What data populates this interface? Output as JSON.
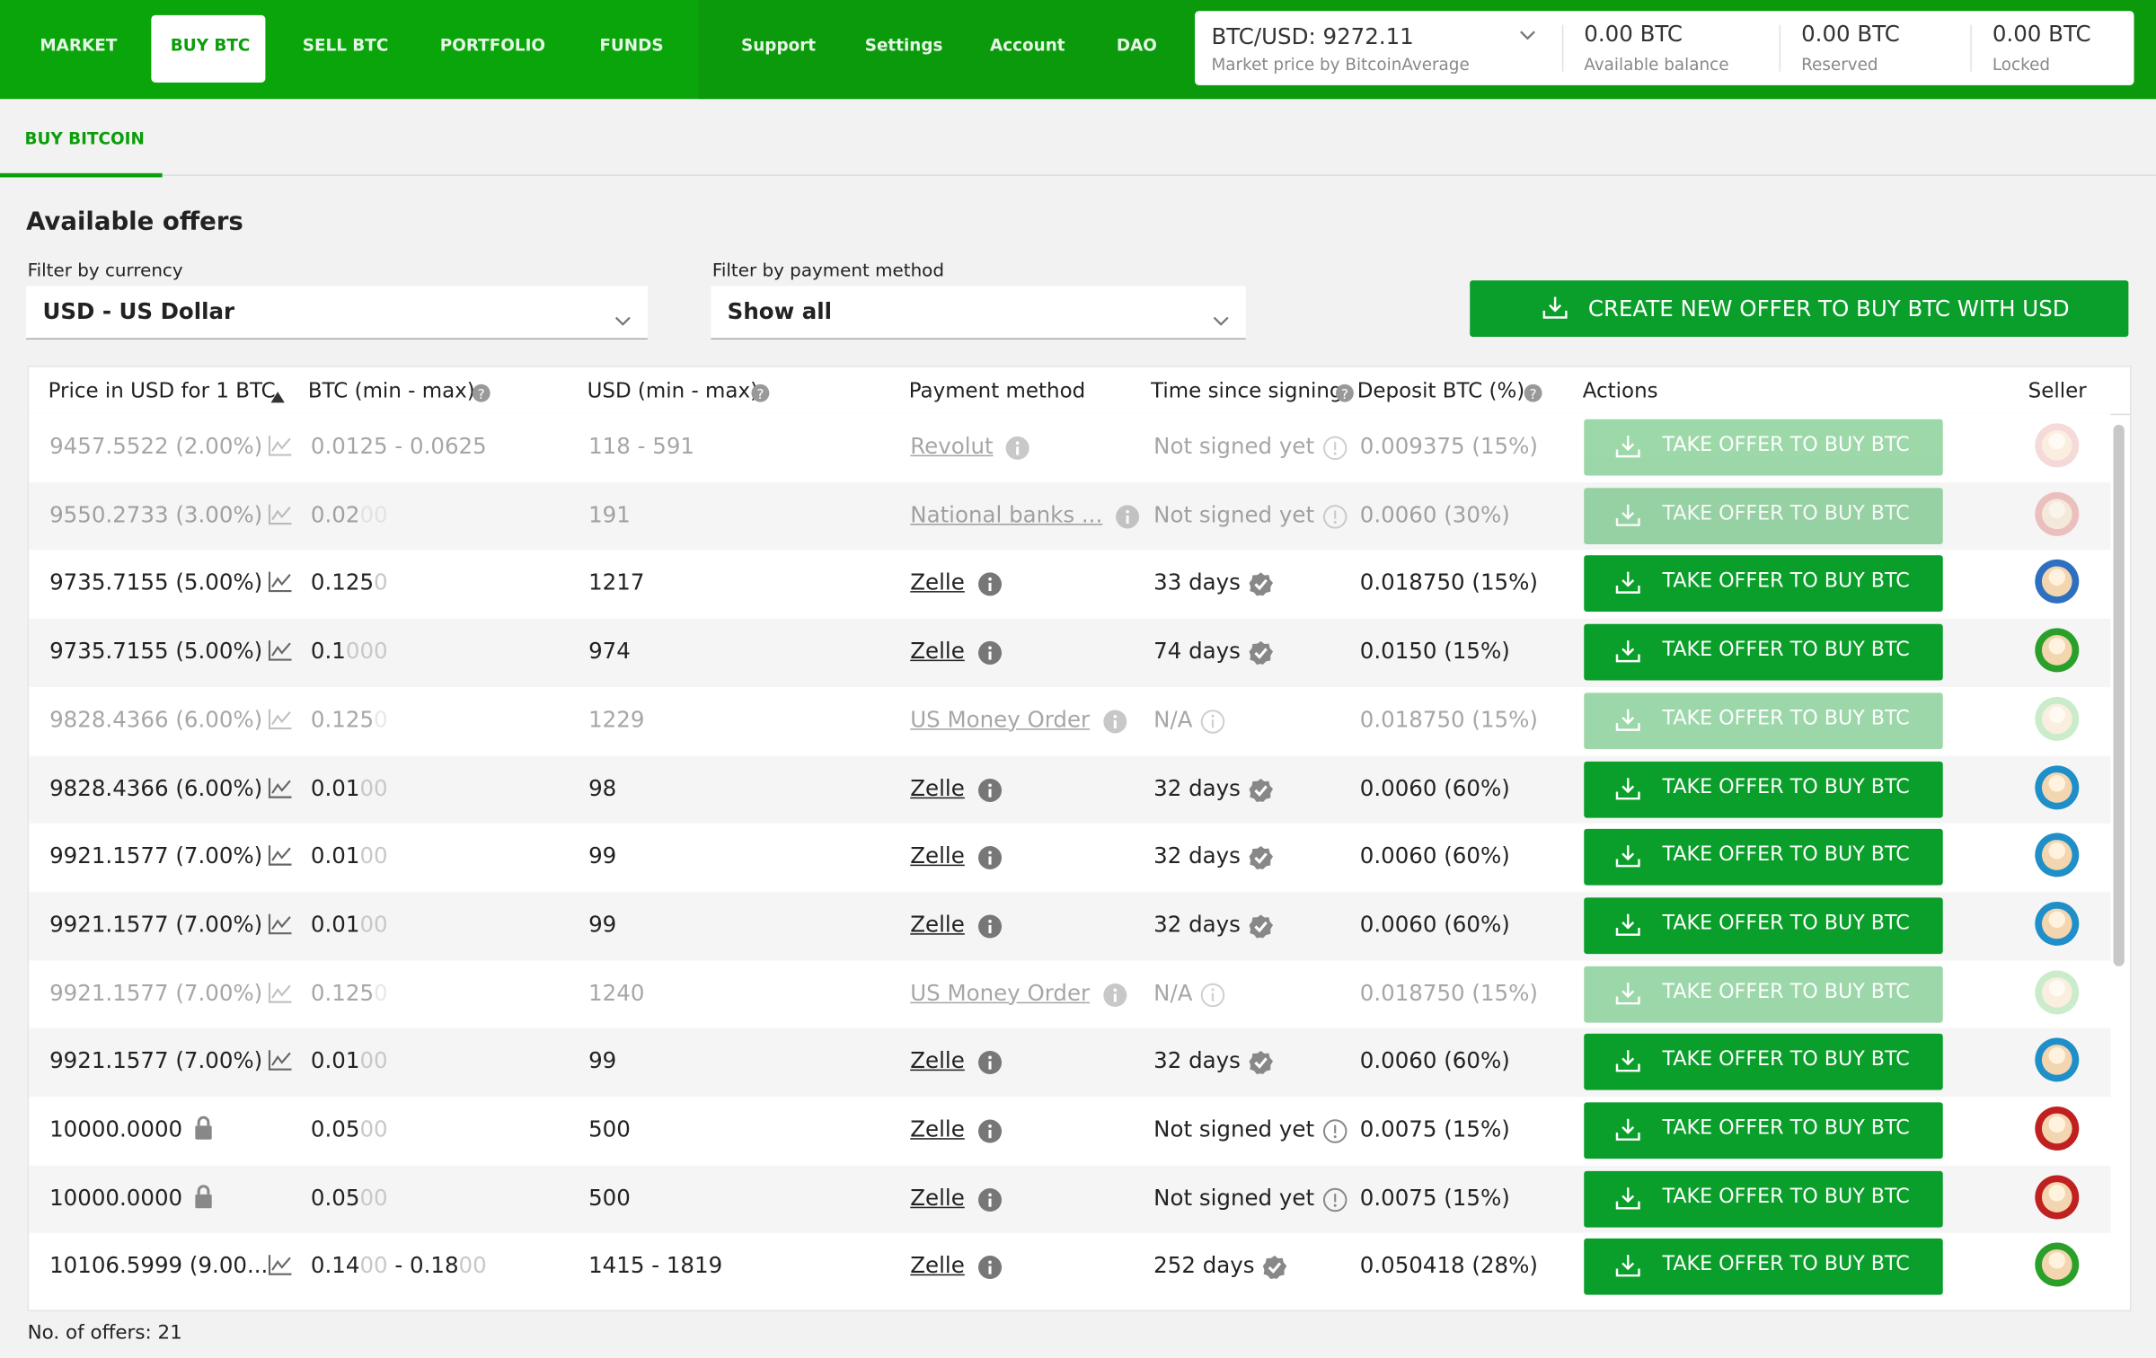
{
  "nav": {
    "items": [
      "MARKET",
      "BUY BTC",
      "SELL BTC",
      "PORTFOLIO",
      "FUNDS"
    ],
    "secondary": [
      "Support",
      "Settings",
      "Account",
      "DAO"
    ],
    "active": 1
  },
  "price": {
    "pair": "BTC/USD: 9272.11",
    "source": "Market price by BitcoinAverage"
  },
  "balances": [
    {
      "value": "0.00 BTC",
      "label": "Available balance"
    },
    {
      "value": "0.00 BTC",
      "label": "Reserved"
    },
    {
      "value": "0.00 BTC",
      "label": "Locked"
    }
  ],
  "tab": "BUY BITCOIN",
  "heading": "Available offers",
  "filters": [
    {
      "label": "Filter by currency",
      "value": "USD  -  US Dollar"
    },
    {
      "label": "Filter by payment method",
      "value": "Show all"
    }
  ],
  "create_button": "CREATE NEW OFFER TO BUY BTC WITH USD",
  "table": {
    "headers": [
      "Price in USD for 1 BTC",
      "BTC (min - max)",
      "USD (min - max)",
      "Payment method",
      "Time since signing",
      "Deposit BTC (%)",
      "Actions",
      "Seller"
    ],
    "action_label": "TAKE OFFER TO BUY BTC",
    "rows": [
      {
        "price": "9457.5522 (2.00%)",
        "icon": "chart",
        "btc": [
          "0.0125 - 0.0625"
        ],
        "usd": "118 - 591",
        "payment": "Revolut",
        "time": "Not signed yet",
        "status": "warn",
        "deposit": "0.009375 (15%)",
        "disabled": true,
        "avatar": "#e8a0a0"
      },
      {
        "price": "9550.2733 (3.00%)",
        "icon": "chart",
        "btc": [
          "0.02",
          "00"
        ],
        "usd": "191",
        "payment": "National banks ...",
        "time": "Not signed yet",
        "status": "warn",
        "deposit": "0.0060 (30%)",
        "disabled": true,
        "avatar": "#e07070"
      },
      {
        "price": "9735.7155 (5.00%)",
        "icon": "chart",
        "btc": [
          "0.125",
          "0"
        ],
        "usd": "1217",
        "payment": "Zelle",
        "time": "33 days",
        "status": "ok",
        "deposit": "0.018750 (15%)",
        "disabled": false,
        "avatar": "#2f6fc0"
      },
      {
        "price": "9735.7155 (5.00%)",
        "icon": "chart",
        "btc": [
          "0.1",
          "000"
        ],
        "usd": "974",
        "payment": "Zelle",
        "time": "74 days",
        "status": "ok",
        "deposit": "0.0150 (15%)",
        "disabled": false,
        "avatar": "#2aa02a"
      },
      {
        "price": "9828.4366 (6.00%)",
        "icon": "chart",
        "btc": [
          "0.125",
          "0"
        ],
        "usd": "1229",
        "payment": "US Money Order",
        "time": "N/A",
        "status": "info",
        "deposit": "0.018750 (15%)",
        "disabled": true,
        "avatar": "#7fd07f"
      },
      {
        "price": "9828.4366 (6.00%)",
        "icon": "chart",
        "btc": [
          "0.01",
          "00"
        ],
        "usd": "98",
        "payment": "Zelle",
        "time": "32 days",
        "status": "ok",
        "deposit": "0.0060 (60%)",
        "disabled": false,
        "avatar": "#1e8fc8"
      },
      {
        "price": "9921.1577 (7.00%)",
        "icon": "chart",
        "btc": [
          "0.01",
          "00"
        ],
        "usd": "99",
        "payment": "Zelle",
        "time": "32 days",
        "status": "ok",
        "deposit": "0.0060 (60%)",
        "disabled": false,
        "avatar": "#1e8fc8"
      },
      {
        "price": "9921.1577 (7.00%)",
        "icon": "chart",
        "btc": [
          "0.01",
          "00"
        ],
        "usd": "99",
        "payment": "Zelle",
        "time": "32 days",
        "status": "ok",
        "deposit": "0.0060 (60%)",
        "disabled": false,
        "avatar": "#1e8fc8"
      },
      {
        "price": "9921.1577 (7.00%)",
        "icon": "chart",
        "btc": [
          "0.125",
          "0"
        ],
        "usd": "1240",
        "payment": "US Money Order",
        "time": "N/A",
        "status": "info",
        "deposit": "0.018750 (15%)",
        "disabled": true,
        "avatar": "#7fd07f"
      },
      {
        "price": "9921.1577 (7.00%)",
        "icon": "chart",
        "btc": [
          "0.01",
          "00"
        ],
        "usd": "99",
        "payment": "Zelle",
        "time": "32 days",
        "status": "ok",
        "deposit": "0.0060 (60%)",
        "disabled": false,
        "avatar": "#1e8fc8"
      },
      {
        "price": "10000.0000",
        "icon": "lock",
        "btc": [
          "0.05",
          "00"
        ],
        "usd": "500",
        "payment": "Zelle",
        "time": "Not signed yet",
        "status": "warn",
        "deposit": "0.0075 (15%)",
        "disabled": false,
        "avatar": "#c02020"
      },
      {
        "price": "10000.0000",
        "icon": "lock",
        "btc": [
          "0.05",
          "00"
        ],
        "usd": "500",
        "payment": "Zelle",
        "time": "Not signed yet",
        "status": "warn",
        "deposit": "0.0075 (15%)",
        "disabled": false,
        "avatar": "#c02020"
      },
      {
        "price": "10106.5999 (9.00...",
        "icon": "chart",
        "btc": [
          "0.14",
          "00",
          " - 0.18",
          "00"
        ],
        "usd": "1415 - 1819",
        "payment": "Zelle",
        "time": "252 days",
        "status": "ok",
        "deposit": "0.050418 (28%)",
        "disabled": false,
        "avatar": "#2aa02a"
      }
    ]
  },
  "footer": "No. of offers: 21"
}
